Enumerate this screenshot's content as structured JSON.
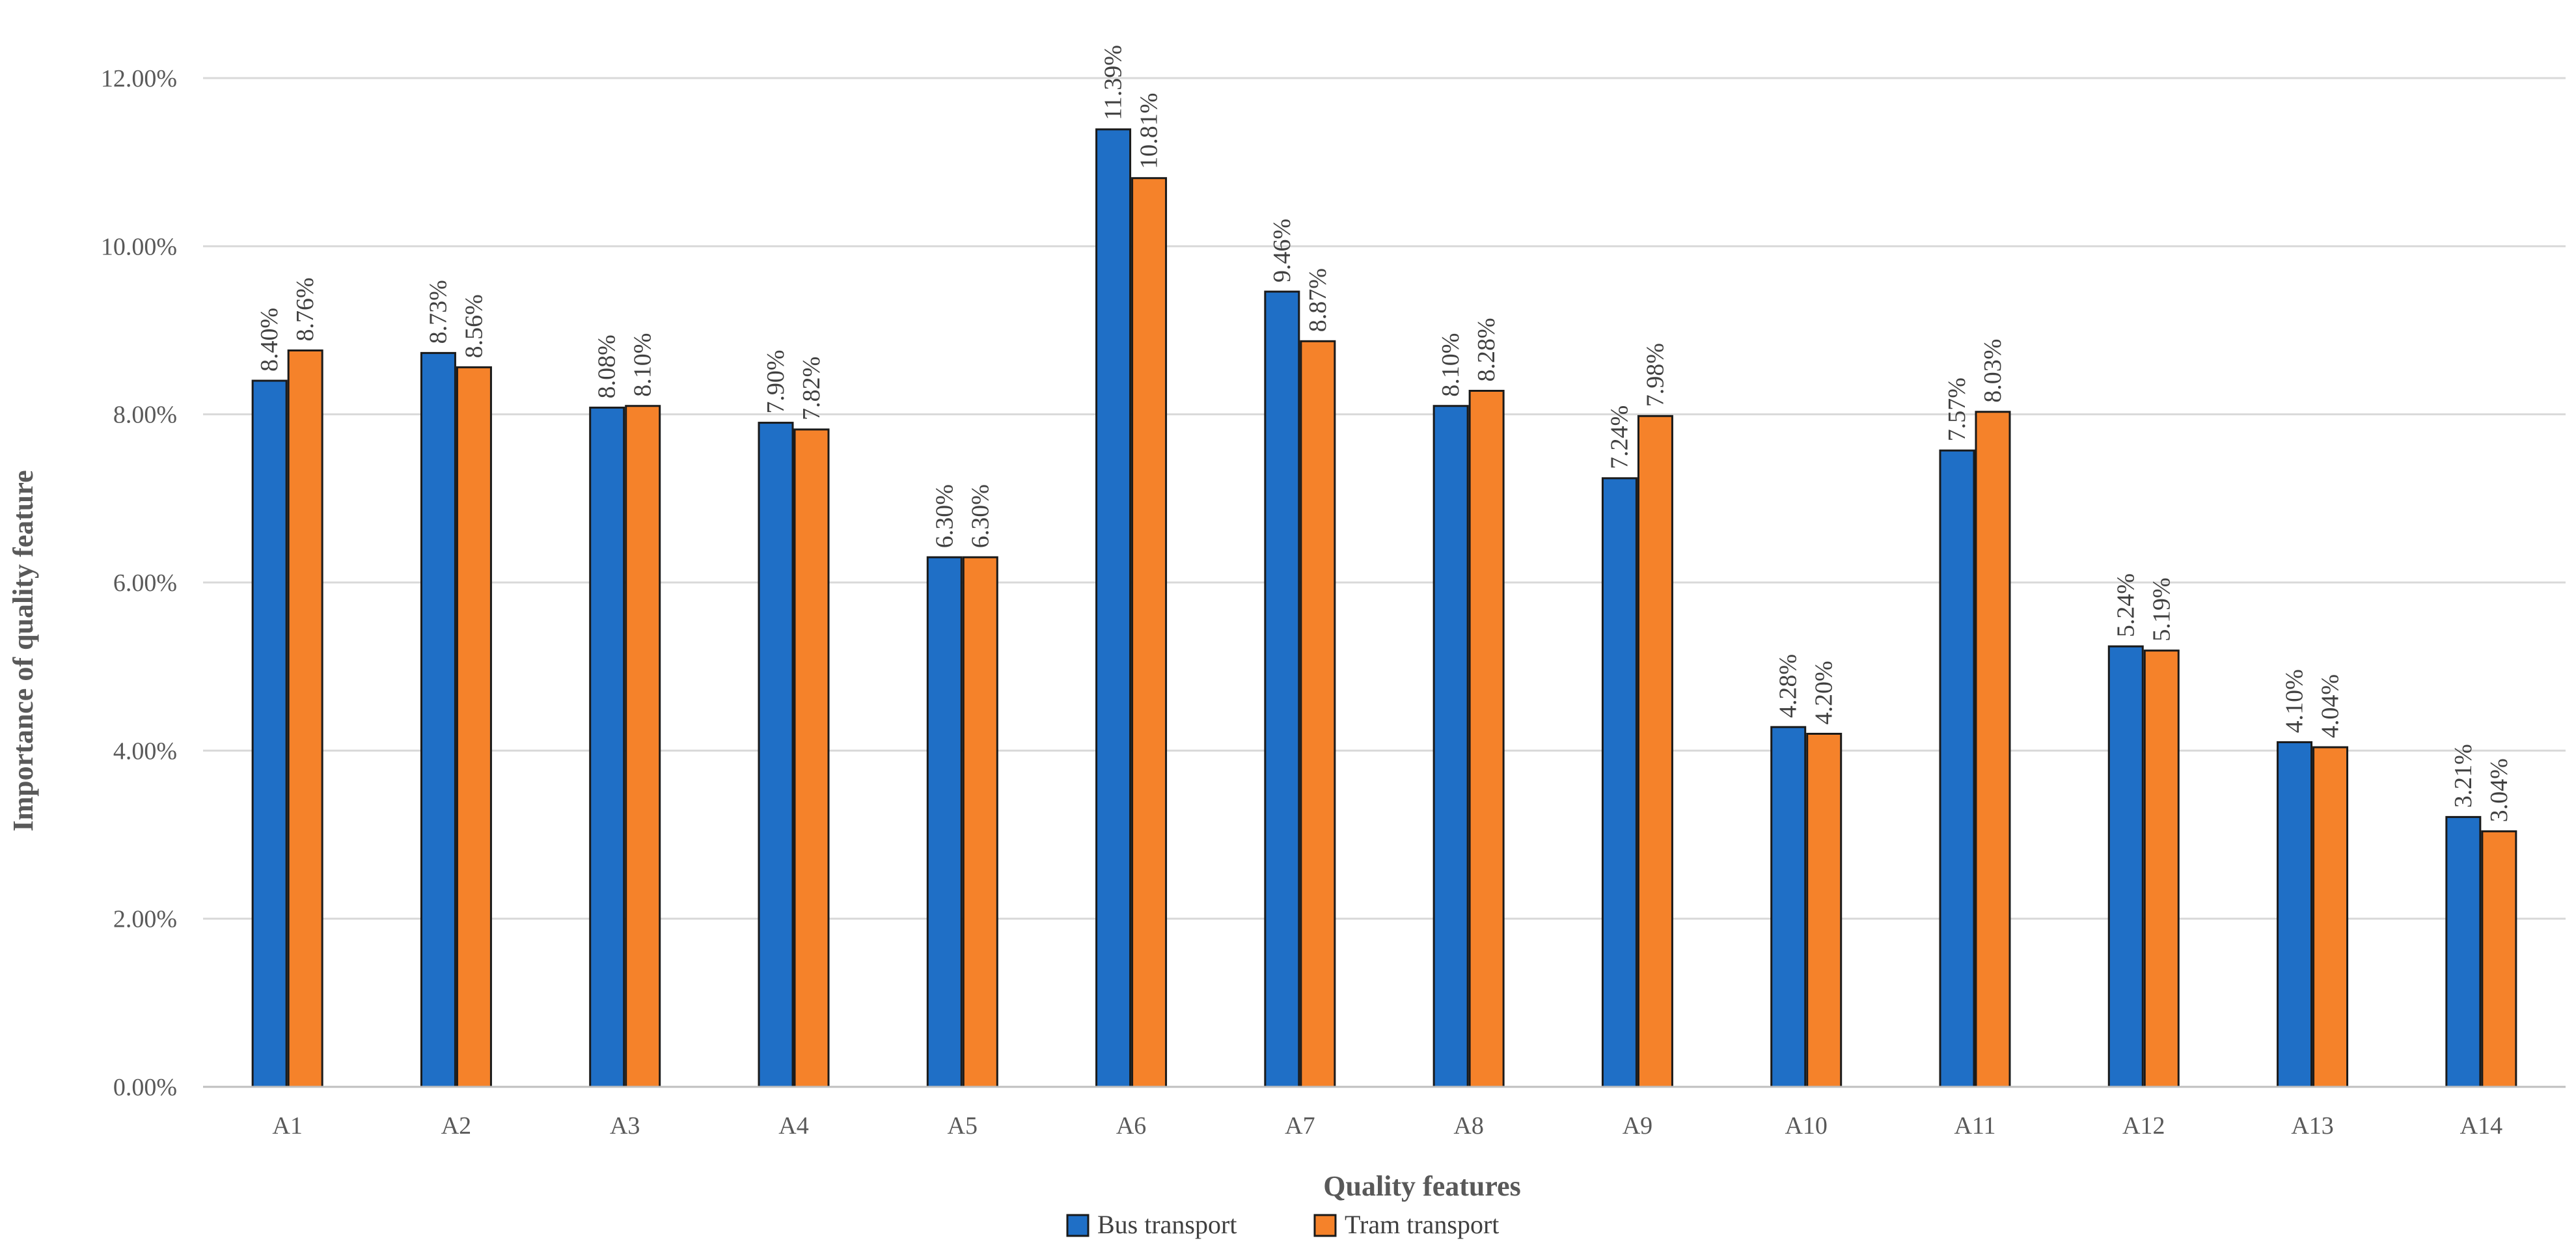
{
  "chart_data": {
    "type": "bar",
    "title": "",
    "xlabel": "Quality features",
    "ylabel": "Importance of quality feature",
    "ylim": [
      0,
      12
    ],
    "yticks": [
      0,
      2,
      4,
      6,
      8,
      10,
      12
    ],
    "ytick_labels": [
      "0.00%",
      "2.00%",
      "4.00%",
      "6.00%",
      "8.00%",
      "10.00%",
      "12.00%"
    ],
    "grid": true,
    "legend_position": "bottom-center",
    "categories": [
      "A1",
      "A2",
      "A3",
      "A4",
      "A5",
      "A6",
      "A7",
      "A8",
      "A9",
      "A10",
      "A11",
      "A12",
      "A13",
      "A14"
    ],
    "series": [
      {
        "name": "Bus transport",
        "color": "#1F6FC6",
        "values": [
          8.4,
          8.73,
          8.08,
          7.9,
          6.3,
          11.39,
          9.46,
          8.1,
          7.24,
          4.28,
          7.57,
          5.24,
          4.1,
          3.21
        ],
        "labels": [
          "8.40%",
          "8.73%",
          "8.08%",
          "7.90%",
          "6.30%",
          "11.39%",
          "9.46%",
          "8.10%",
          "7.24%",
          "4.28%",
          "7.57%",
          "5.24%",
          "4.10%",
          "3.21%"
        ]
      },
      {
        "name": "Tram transport",
        "color": "#F5822A",
        "values": [
          8.76,
          8.56,
          8.1,
          7.82,
          6.3,
          10.81,
          8.87,
          8.28,
          7.98,
          4.2,
          8.03,
          5.19,
          4.04,
          3.04
        ],
        "labels": [
          "8.76%",
          "8.56%",
          "8.10%",
          "7.82%",
          "6.30%",
          "10.81%",
          "8.87%",
          "8.28%",
          "7.98%",
          "4.20%",
          "8.03%",
          "5.19%",
          "4.04%",
          "3.04%"
        ]
      }
    ]
  }
}
